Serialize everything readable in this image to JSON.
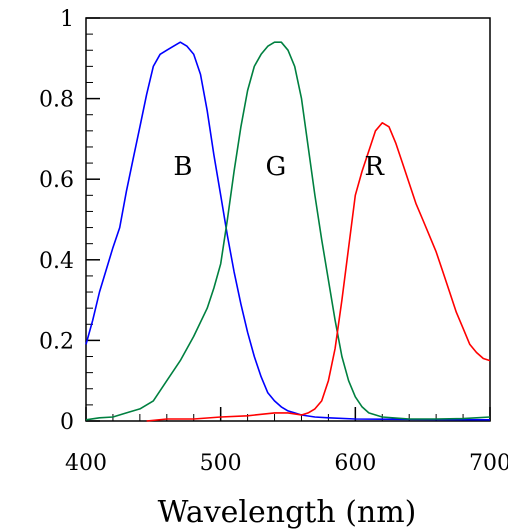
{
  "chart_data": {
    "type": "line",
    "title": "",
    "xlabel": "Wavelength (nm)",
    "ylabel": "",
    "xlim": [
      400,
      700
    ],
    "ylim": [
      0,
      1
    ],
    "x_ticks": [
      400,
      500,
      600,
      700
    ],
    "x_tick_labels": [
      "400",
      "500",
      "600",
      "700"
    ],
    "y_ticks": [
      0,
      0.2,
      0.4,
      0.6,
      0.8,
      1
    ],
    "y_tick_labels": [
      "0",
      "0.2",
      "0.4",
      "0.6",
      "0.8",
      "1"
    ],
    "grid": false,
    "legend": "none",
    "series": [
      {
        "name": "B",
        "color": "#0000ff",
        "label_at": [
          472,
          0.61
        ],
        "points": [
          [
            400,
            0.19
          ],
          [
            405,
            0.25
          ],
          [
            410,
            0.32
          ],
          [
            420,
            0.43
          ],
          [
            425,
            0.48
          ],
          [
            430,
            0.57
          ],
          [
            435,
            0.65
          ],
          [
            440,
            0.73
          ],
          [
            445,
            0.81
          ],
          [
            450,
            0.88
          ],
          [
            455,
            0.91
          ],
          [
            460,
            0.92
          ],
          [
            465,
            0.93
          ],
          [
            470,
            0.94
          ],
          [
            475,
            0.93
          ],
          [
            480,
            0.91
          ],
          [
            485,
            0.86
          ],
          [
            490,
            0.77
          ],
          [
            495,
            0.66
          ],
          [
            500,
            0.56
          ],
          [
            505,
            0.46
          ],
          [
            510,
            0.37
          ],
          [
            515,
            0.29
          ],
          [
            520,
            0.22
          ],
          [
            525,
            0.16
          ],
          [
            530,
            0.11
          ],
          [
            535,
            0.07
          ],
          [
            540,
            0.05
          ],
          [
            545,
            0.035
          ],
          [
            550,
            0.025
          ],
          [
            555,
            0.02
          ],
          [
            560,
            0.015
          ],
          [
            570,
            0.01
          ],
          [
            580,
            0.008
          ],
          [
            600,
            0.005
          ],
          [
            700,
            0.003
          ]
        ]
      },
      {
        "name": "G",
        "color": "#008040",
        "label_at": [
          541,
          0.61
        ],
        "points": [
          [
            400,
            0.003
          ],
          [
            410,
            0.008
          ],
          [
            420,
            0.01
          ],
          [
            430,
            0.02
          ],
          [
            440,
            0.03
          ],
          [
            450,
            0.05
          ],
          [
            460,
            0.1
          ],
          [
            470,
            0.15
          ],
          [
            480,
            0.21
          ],
          [
            490,
            0.28
          ],
          [
            495,
            0.33
          ],
          [
            500,
            0.39
          ],
          [
            505,
            0.5
          ],
          [
            510,
            0.62
          ],
          [
            515,
            0.73
          ],
          [
            520,
            0.82
          ],
          [
            525,
            0.88
          ],
          [
            530,
            0.91
          ],
          [
            535,
            0.93
          ],
          [
            540,
            0.94
          ],
          [
            545,
            0.94
          ],
          [
            550,
            0.92
          ],
          [
            555,
            0.88
          ],
          [
            560,
            0.8
          ],
          [
            565,
            0.68
          ],
          [
            570,
            0.56
          ],
          [
            575,
            0.45
          ],
          [
            580,
            0.35
          ],
          [
            585,
            0.25
          ],
          [
            590,
            0.16
          ],
          [
            595,
            0.1
          ],
          [
            600,
            0.06
          ],
          [
            605,
            0.035
          ],
          [
            610,
            0.02
          ],
          [
            620,
            0.01
          ],
          [
            640,
            0.005
          ],
          [
            660,
            0.005
          ],
          [
            680,
            0.006
          ],
          [
            700,
            0.01
          ]
        ]
      },
      {
        "name": "R",
        "color": "#ff0000",
        "label_at": [
          614,
          0.61
        ],
        "points": [
          [
            445,
            0.0
          ],
          [
            460,
            0.005
          ],
          [
            480,
            0.005
          ],
          [
            500,
            0.01
          ],
          [
            520,
            0.013
          ],
          [
            540,
            0.02
          ],
          [
            550,
            0.02
          ],
          [
            560,
            0.015
          ],
          [
            565,
            0.02
          ],
          [
            570,
            0.03
          ],
          [
            575,
            0.05
          ],
          [
            580,
            0.1
          ],
          [
            585,
            0.18
          ],
          [
            590,
            0.3
          ],
          [
            595,
            0.43
          ],
          [
            600,
            0.56
          ],
          [
            605,
            0.62
          ],
          [
            610,
            0.67
          ],
          [
            615,
            0.72
          ],
          [
            620,
            0.74
          ],
          [
            625,
            0.73
          ],
          [
            630,
            0.69
          ],
          [
            635,
            0.64
          ],
          [
            640,
            0.59
          ],
          [
            645,
            0.54
          ],
          [
            650,
            0.5
          ],
          [
            655,
            0.46
          ],
          [
            660,
            0.42
          ],
          [
            665,
            0.37
          ],
          [
            670,
            0.32
          ],
          [
            675,
            0.27
          ],
          [
            680,
            0.23
          ],
          [
            685,
            0.19
          ],
          [
            690,
            0.17
          ],
          [
            695,
            0.155
          ],
          [
            700,
            0.15
          ]
        ]
      }
    ]
  }
}
